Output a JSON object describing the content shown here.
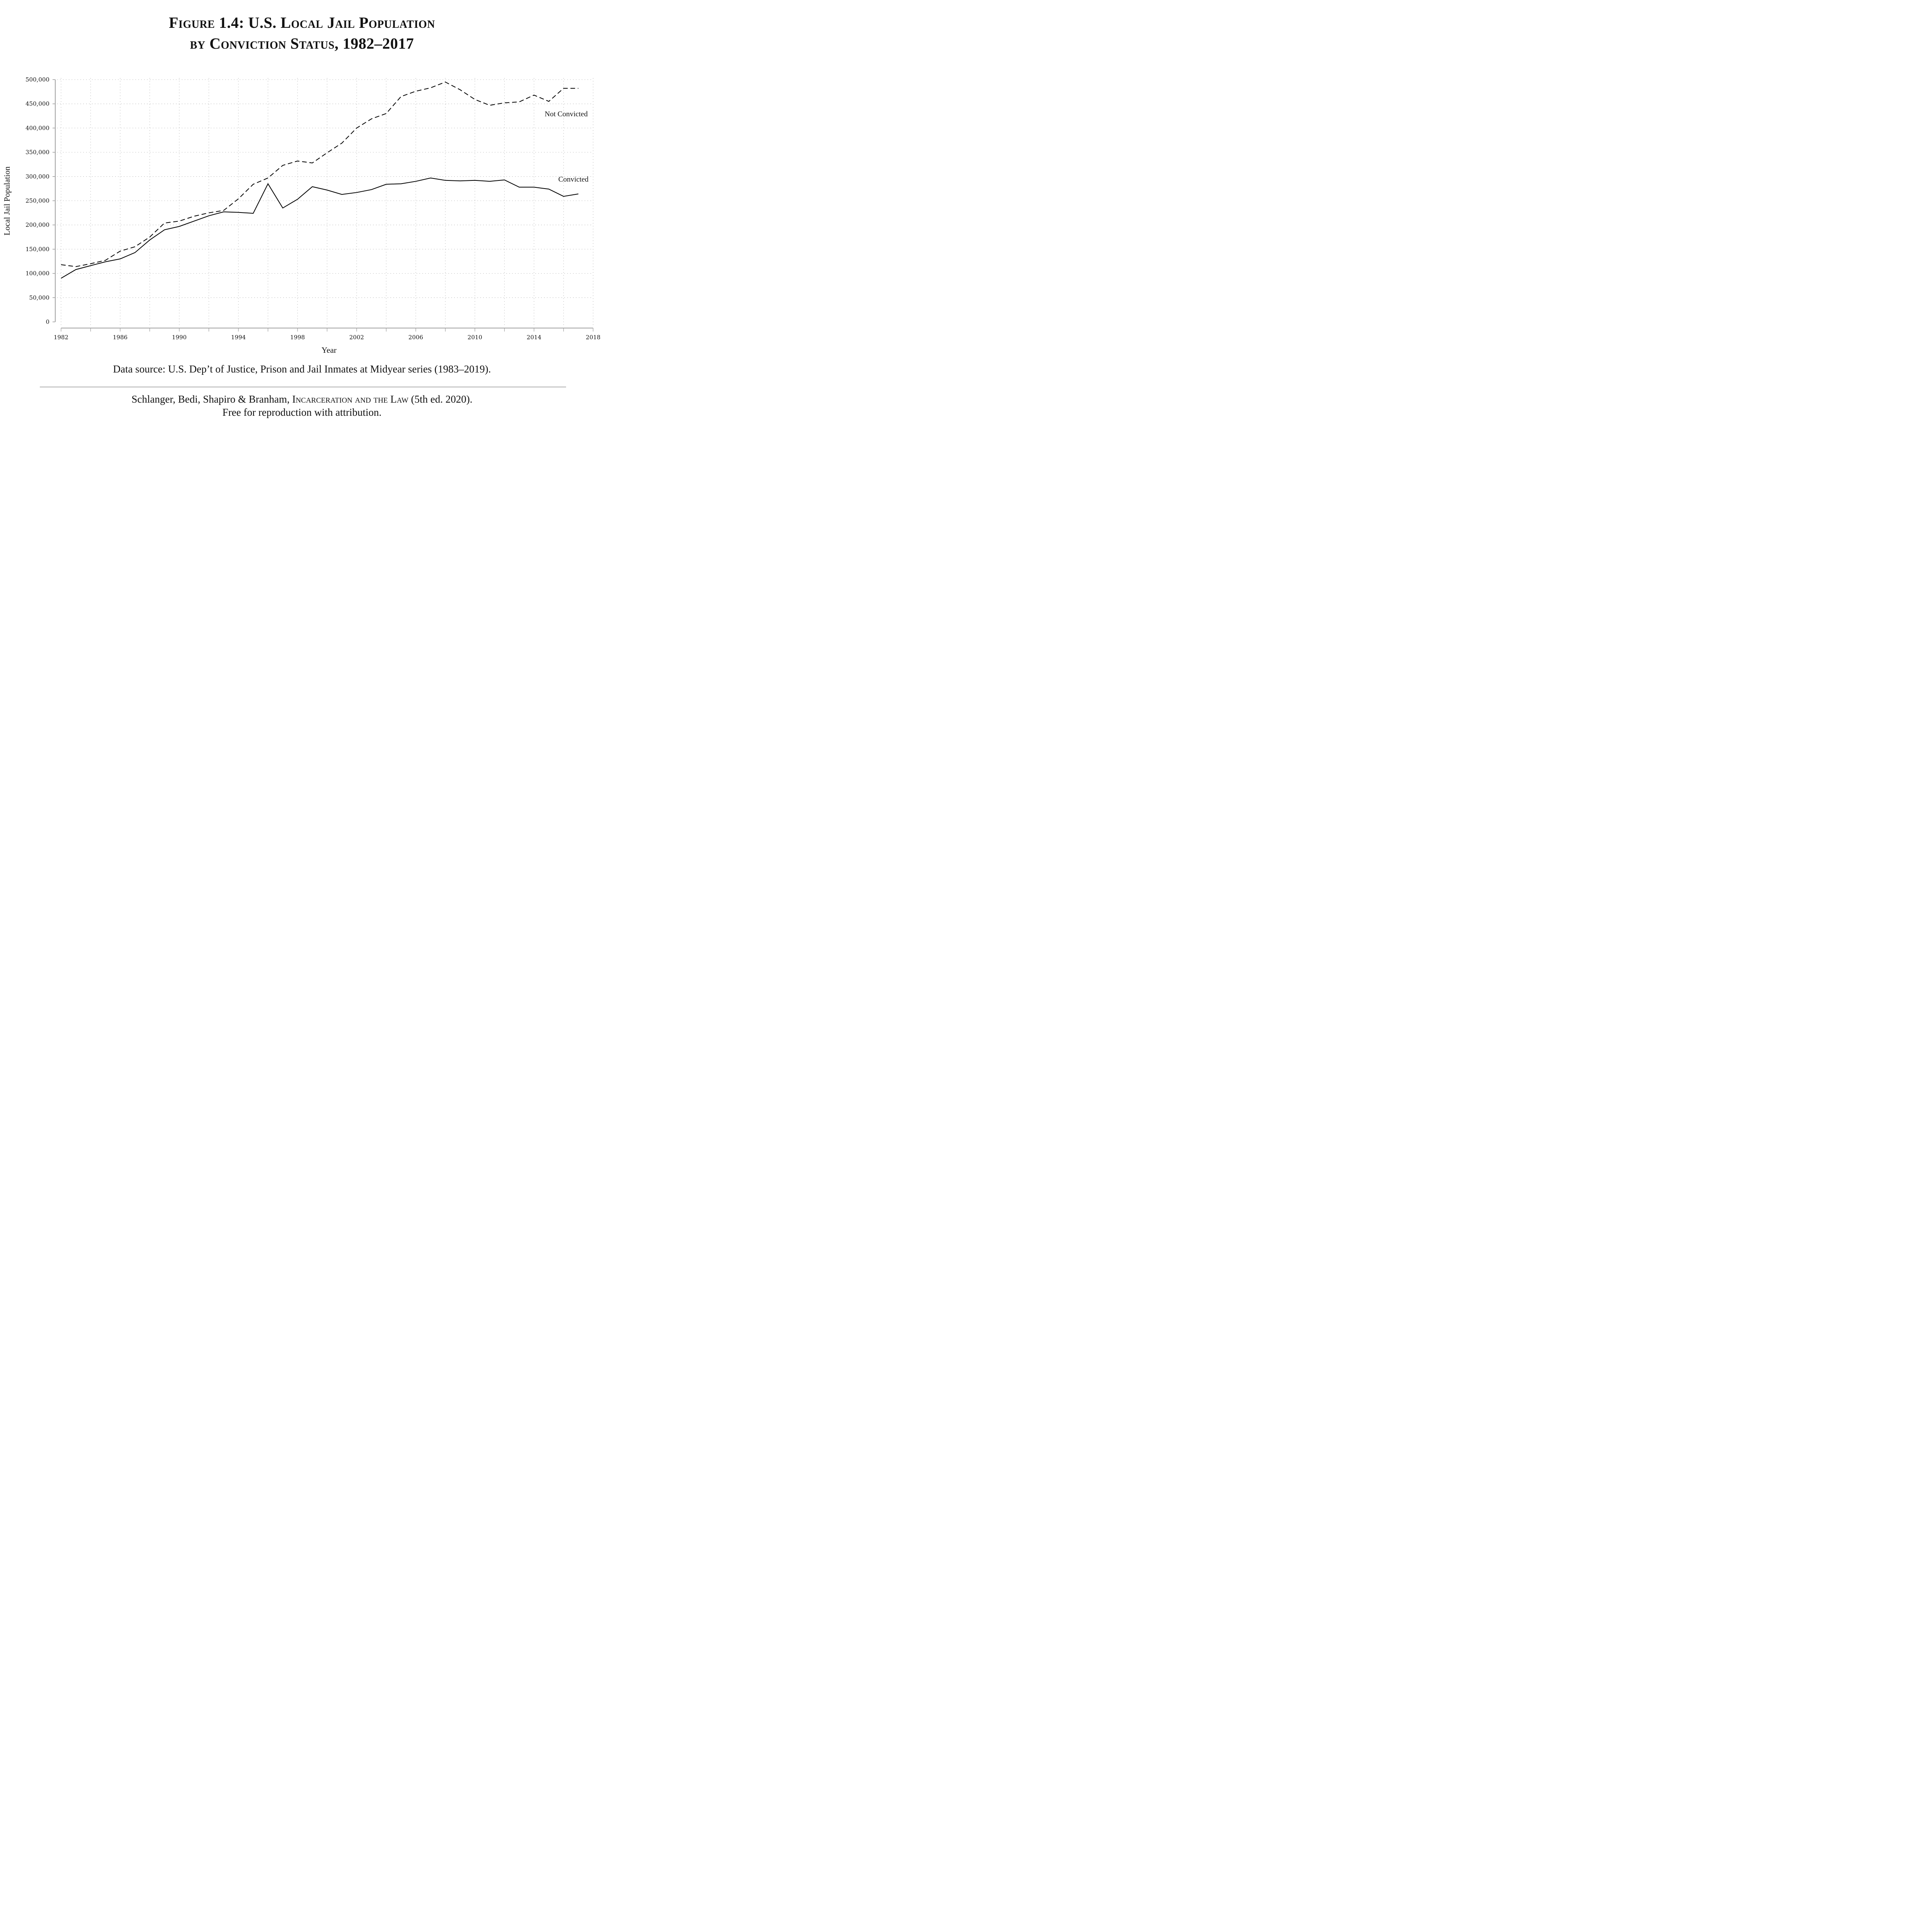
{
  "title": {
    "line1": "Figure 1.4: U.S. Local Jail Population",
    "line2": "by Conviction Status, 1982–2017"
  },
  "footer": {
    "source": "Data source: U.S. Dep’t of Justice, Prison and Jail Inmates at Midyear series (1983–2019).",
    "citation_prefix": "Schlanger, Bedi, Shapiro & Branham, ",
    "citation_book": "Incarceration and the Law",
    "citation_suffix": " (5th ed. 2020).",
    "license": "Free for reproduction with attribution."
  },
  "chart_data": {
    "type": "line",
    "title": "Figure 1.4: U.S. Local Jail Population by Conviction Status, 1982–2017",
    "xlabel": "Year",
    "ylabel": "Local Jail Population",
    "xlim": [
      1982,
      2018
    ],
    "ylim": [
      0,
      500000
    ],
    "x_ticks": [
      1982,
      1986,
      1990,
      1994,
      1998,
      2002,
      2006,
      2010,
      2014,
      2018
    ],
    "x_minor_step": 2,
    "y_ticks": [
      0,
      50000,
      100000,
      150000,
      200000,
      250000,
      300000,
      350000,
      400000,
      450000,
      500000
    ],
    "y_tick_labels": [
      "0",
      "50,000",
      "100,000",
      "150,000",
      "200,000",
      "250,000",
      "300,000",
      "350,000",
      "400,000",
      "450,000",
      "500,000"
    ],
    "grid": true,
    "legend": "direct-labels",
    "x": [
      1982,
      1983,
      1984,
      1985,
      1986,
      1987,
      1988,
      1989,
      1990,
      1991,
      1992,
      1993,
      1994,
      1995,
      1996,
      1997,
      1998,
      1999,
      2000,
      2001,
      2002,
      2003,
      2004,
      2005,
      2006,
      2007,
      2008,
      2009,
      2010,
      2011,
      2012,
      2013,
      2014,
      2015,
      2016,
      2017
    ],
    "series": [
      {
        "name": "Not Convicted",
        "style": "dashed",
        "color": "#000000",
        "label_position": "right, below line",
        "values": [
          118000,
          114000,
          120000,
          127000,
          146000,
          155000,
          175000,
          204000,
          208000,
          218000,
          225000,
          230000,
          254000,
          284000,
          297000,
          323000,
          332000,
          328000,
          349000,
          369000,
          400000,
          419000,
          430000,
          465000,
          476000,
          483000,
          495000,
          479000,
          459000,
          447000,
          452000,
          454000,
          468000,
          455000,
          482000,
          482000
        ]
      },
      {
        "name": "Convicted",
        "style": "solid",
        "color": "#000000",
        "label_position": "right, above line",
        "values": [
          90000,
          108000,
          116000,
          124000,
          130000,
          143000,
          169000,
          190000,
          197000,
          208000,
          219000,
          227000,
          226000,
          224000,
          285000,
          235000,
          253000,
          279000,
          272000,
          263000,
          267000,
          273000,
          284000,
          285000,
          290000,
          297000,
          292000,
          291000,
          292000,
          290000,
          293000,
          278000,
          278000,
          274000,
          259000,
          264000
        ]
      }
    ]
  }
}
